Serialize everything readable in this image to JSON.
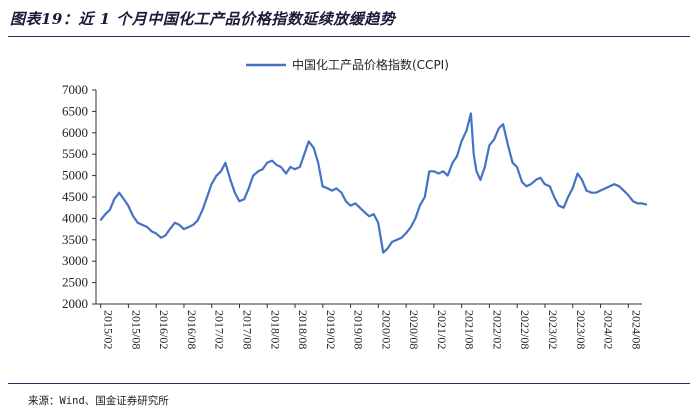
{
  "header": {
    "title": "图表19：近 1 个月中国化工产品价格指数延续放缓趋势"
  },
  "footer": {
    "source": "来源：Wind、国金证券研究所"
  },
  "chart_data": {
    "type": "line",
    "title": "",
    "xlabel": "",
    "ylabel": "",
    "ylim": [
      2000,
      7000
    ],
    "yticks": [
      "2000",
      "2500",
      "3000",
      "3500",
      "4000",
      "4500",
      "5000",
      "5500",
      "6000",
      "6500",
      "7000"
    ],
    "xticks": [
      "2015/02",
      "2015/08",
      "2016/02",
      "2016/08",
      "2017/02",
      "2017/08",
      "2018/02",
      "2018/08",
      "2019/02",
      "2019/08",
      "2020/02",
      "2020/08",
      "2021/02",
      "2021/08",
      "2022/02",
      "2022/08",
      "2023/02",
      "2023/08",
      "2024/02",
      "2024/08"
    ],
    "legend": {
      "position": "top-center"
    },
    "series": [
      {
        "name": "中国化工产品价格指数(CCPI)",
        "color": "#4472c4",
        "x": [
          2015.08,
          2015.17,
          2015.25,
          2015.33,
          2015.42,
          2015.5,
          2015.58,
          2015.67,
          2015.75,
          2015.83,
          2015.92,
          2016.0,
          2016.08,
          2016.17,
          2016.25,
          2016.33,
          2016.42,
          2016.5,
          2016.58,
          2016.67,
          2016.75,
          2016.83,
          2016.92,
          2017.0,
          2017.08,
          2017.17,
          2017.25,
          2017.33,
          2017.42,
          2017.5,
          2017.58,
          2017.67,
          2017.75,
          2017.83,
          2017.92,
          2018.0,
          2018.08,
          2018.17,
          2018.25,
          2018.33,
          2018.42,
          2018.5,
          2018.58,
          2018.67,
          2018.75,
          2018.83,
          2018.92,
          2019.0,
          2019.08,
          2019.17,
          2019.25,
          2019.33,
          2019.42,
          2019.5,
          2019.58,
          2019.67,
          2019.75,
          2019.83,
          2019.92,
          2020.0,
          2020.08,
          2020.17,
          2020.25,
          2020.33,
          2020.42,
          2020.5,
          2020.58,
          2020.67,
          2020.75,
          2020.83,
          2020.92,
          2021.0,
          2021.08,
          2021.17,
          2021.25,
          2021.33,
          2021.42,
          2021.5,
          2021.58,
          2021.67,
          2021.75,
          2021.8,
          2021.85,
          2021.92,
          2022.0,
          2022.08,
          2022.17,
          2022.25,
          2022.33,
          2022.42,
          2022.5,
          2022.58,
          2022.67,
          2022.75,
          2022.83,
          2022.92,
          2023.0,
          2023.08,
          2023.17,
          2023.25,
          2023.33,
          2023.42,
          2023.5,
          2023.58,
          2023.67,
          2023.75,
          2023.83,
          2023.92,
          2024.0,
          2024.08,
          2024.17,
          2024.25,
          2024.33,
          2024.42,
          2024.5,
          2024.58,
          2024.67,
          2024.75,
          2024.83,
          2024.92
        ],
        "values": [
          3950,
          4100,
          4200,
          4450,
          4600,
          4450,
          4300,
          4050,
          3900,
          3850,
          3800,
          3700,
          3650,
          3550,
          3600,
          3750,
          3900,
          3850,
          3750,
          3800,
          3850,
          3950,
          4200,
          4500,
          4800,
          5000,
          5100,
          5300,
          4900,
          4600,
          4400,
          4450,
          4700,
          5000,
          5100,
          5150,
          5300,
          5350,
          5250,
          5200,
          5050,
          5200,
          5150,
          5200,
          5500,
          5800,
          5650,
          5300,
          4750,
          4700,
          4650,
          4700,
          4600,
          4400,
          4300,
          4350,
          4250,
          4150,
          4050,
          4100,
          3900,
          3200,
          3300,
          3450,
          3500,
          3550,
          3650,
          3800,
          4000,
          4300,
          4500,
          5100,
          5100,
          5050,
          5100,
          5000,
          5300,
          5450,
          5800,
          6050,
          6450,
          5500,
          5100,
          4900,
          5200,
          5700,
          5850,
          6100,
          6200,
          5700,
          5300,
          5200,
          4850,
          4750,
          4800,
          4900,
          4950,
          4800,
          4750,
          4500,
          4300,
          4250,
          4500,
          4700,
          5050,
          4900,
          4650,
          4600,
          4600,
          4650,
          4700,
          4750,
          4800,
          4750,
          4650,
          4550,
          4400,
          4350,
          4350,
          4320
        ]
      }
    ]
  }
}
